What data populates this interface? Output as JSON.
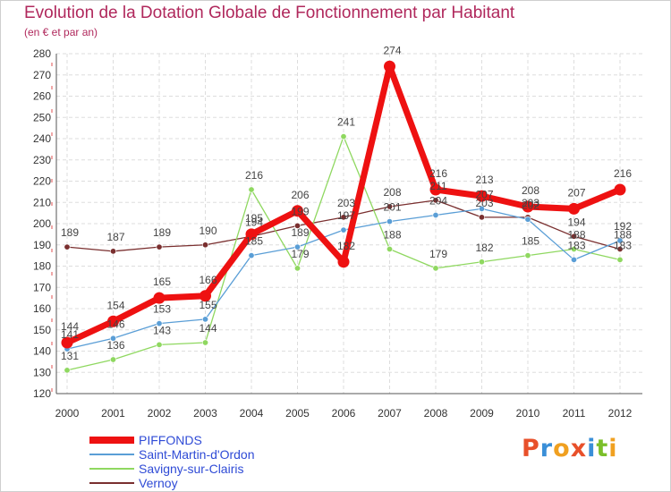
{
  "title": "Evolution de la Dotation Globale de Fonctionnement par Habitant",
  "subtitle": "(en € et par an)",
  "logo": {
    "letters": [
      "P",
      "r",
      "o",
      "x",
      "i",
      "t",
      "i"
    ],
    "colors": [
      "#e8502a",
      "#3a8fd8",
      "#f0a020",
      "#e8502a",
      "#3a8fd8",
      "#7bbf2a",
      "#f0a020"
    ]
  },
  "chart_data": {
    "type": "line",
    "title": "Evolution de la Dotation Globale de Fonctionnement par Habitant",
    "subtitle": "(en € et par an)",
    "xlabel": "",
    "ylabel": "",
    "x": [
      "2000",
      "2001",
      "2002",
      "2003",
      "2004",
      "2005",
      "2006",
      "2007",
      "2008",
      "2009",
      "2010",
      "2011",
      "2012"
    ],
    "ylim": [
      120,
      280
    ],
    "yticks": [
      120,
      130,
      140,
      150,
      160,
      170,
      180,
      190,
      200,
      210,
      220,
      230,
      240,
      250,
      260,
      270,
      280
    ],
    "grid": true,
    "legend_position": "bottom-left",
    "series": [
      {
        "name": "Vernoy",
        "color": "#7a2f2f",
        "values": [
          189,
          187,
          189,
          190,
          194,
          199,
          203,
          208,
          211,
          203,
          203,
          194,
          188
        ]
      },
      {
        "name": "Savigny-sur-Clairis",
        "color": "#8fd860",
        "values": [
          131,
          136,
          143,
          144,
          216,
          179,
          241,
          188,
          179,
          182,
          185,
          188,
          183
        ]
      },
      {
        "name": "Saint-Martin-d'Ordon",
        "color": "#5a9ed6",
        "values": [
          141,
          146,
          153,
          155,
          185,
          189,
          197,
          201,
          204,
          207,
          202,
          183,
          192
        ]
      },
      {
        "name": "PIFFONDS",
        "color": "#ee1111",
        "values": [
          144,
          154,
          165,
          166,
          195,
          206,
          182,
          274,
          216,
          213,
          208,
          207,
          216
        ]
      }
    ],
    "data_labels": {
      "Vernoy": [
        "189",
        "187",
        "189",
        "190",
        "194",
        "199",
        "203",
        "208",
        "211",
        "203",
        "203",
        "194",
        "188"
      ],
      "Savigny-sur-Clairis": [
        "131",
        "136",
        "143",
        "144",
        "216",
        "179",
        "241",
        "188",
        "179",
        "182",
        "185",
        "188",
        "183"
      ],
      "Saint-Martin-d'Ordon": [
        "141",
        "146",
        "153",
        "155",
        "185",
        "189",
        "197",
        "201",
        "204",
        "207",
        "202",
        "183",
        "192"
      ],
      "PIFFONDS": [
        "144",
        "154",
        "165",
        "166",
        "195",
        "206",
        "182",
        "274",
        "216",
        "213",
        "208",
        "207",
        "216"
      ]
    }
  },
  "legend": [
    {
      "name": "PIFFONDS",
      "color": "#ee1111"
    },
    {
      "name": "Saint-Martin-d'Ordon",
      "color": "#5a9ed6"
    },
    {
      "name": "Savigny-sur-Clairis",
      "color": "#8fd860"
    },
    {
      "name": "Vernoy",
      "color": "#7a2f2f"
    }
  ]
}
